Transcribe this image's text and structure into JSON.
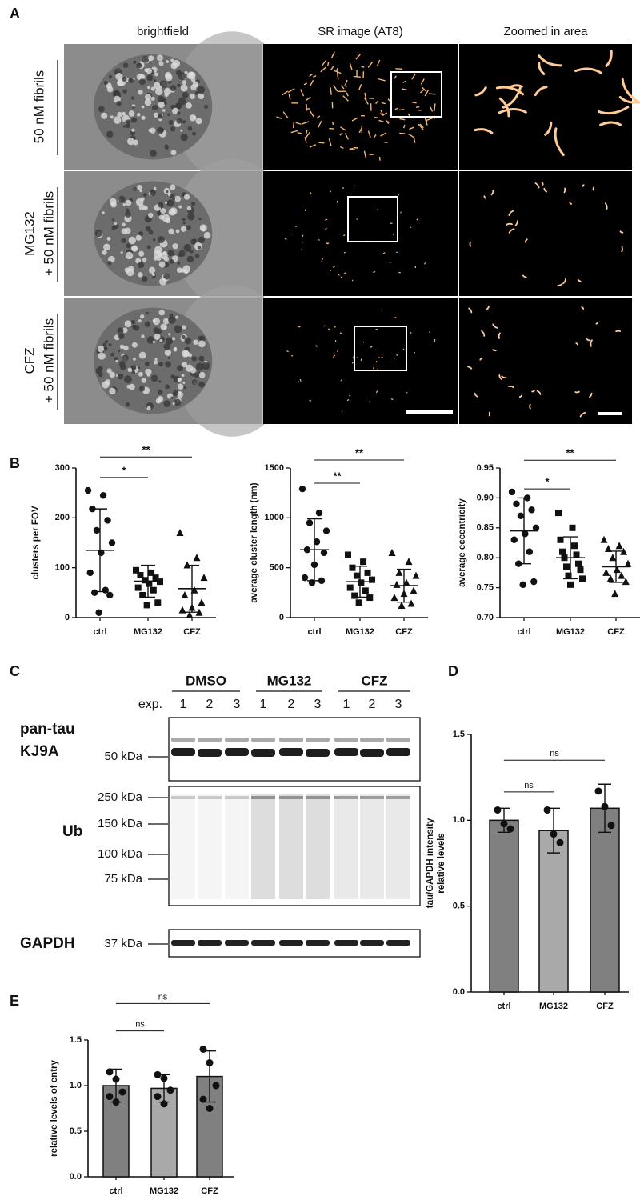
{
  "panel_labels": [
    "A",
    "B",
    "C",
    "D",
    "E"
  ],
  "panel_A": {
    "columns": [
      "brightfield",
      "SR image (AT8)",
      "Zoomed in area"
    ],
    "rows": [
      [
        "50 nM fibrils"
      ],
      [
        "MG132",
        "+ 50 nM fibrils"
      ],
      [
        "CFZ",
        "+ 50 nM fibrils"
      ]
    ]
  },
  "panel_C": {
    "groups": [
      "DMSO",
      "MG132",
      "CFZ"
    ],
    "lane_label": "exp.",
    "lanes": [
      "1",
      "2",
      "3",
      "1",
      "2",
      "3",
      "1",
      "2",
      "3"
    ],
    "blots": [
      {
        "labels": [
          "pan-tau",
          "KJ9A"
        ],
        "markers": [
          "50 kDa"
        ]
      },
      {
        "labels": [
          "Ub"
        ],
        "markers": [
          "250 kDa",
          "150 kDa",
          "100 kDa",
          "75 kDa"
        ]
      },
      {
        "labels": [
          "GAPDH"
        ],
        "markers": [
          "37 kDa"
        ]
      }
    ]
  },
  "chart_data": [
    {
      "type": "dot",
      "ylabel": "clusters per FOV",
      "categories": [
        "ctrl",
        "MG132",
        "CFZ"
      ],
      "markers": [
        "circle",
        "square",
        "triangle"
      ],
      "points": [
        [
          255,
          245,
          218,
          195,
          175,
          150,
          130,
          90,
          55,
          50,
          45,
          10
        ],
        [
          95,
          90,
          85,
          80,
          75,
          72,
          68,
          60,
          55,
          45,
          30,
          25
        ],
        [
          170,
          120,
          105,
          80,
          55,
          45,
          30,
          20,
          15,
          10,
          5
        ]
      ],
      "values": [
        135,
        73,
        58
      ],
      "errors": [
        83,
        32,
        47
      ],
      "ylim": [
        0,
        300
      ],
      "yticks": [
        0,
        100,
        200,
        300
      ],
      "annotations": [
        {
          "text": "*",
          "between": [
            "ctrl",
            "MG132"
          ],
          "y": 281
        },
        {
          "text": "**",
          "between": [
            "ctrl",
            "CFZ"
          ],
          "y": 322
        }
      ]
    },
    {
      "type": "dot",
      "ylabel": "average cluster length (nm)",
      "categories": [
        "ctrl",
        "MG132",
        "CFZ"
      ],
      "markers": [
        "circle",
        "square",
        "triangle"
      ],
      "points": [
        [
          1290,
          1050,
          950,
          870,
          760,
          680,
          650,
          530,
          400,
          370,
          350
        ],
        [
          630,
          560,
          500,
          450,
          420,
          380,
          350,
          300,
          270,
          220,
          200,
          150
        ],
        [
          650,
          560,
          450,
          420,
          350,
          330,
          270,
          240,
          200,
          140,
          120
        ]
      ],
      "values": [
        680,
        360,
        320
      ],
      "errors": [
        310,
        155,
        165
      ],
      "ylim": [
        0,
        1500
      ],
      "yticks": [
        0,
        500,
        1000,
        1500
      ],
      "annotations": [
        {
          "text": "**",
          "between": [
            "ctrl",
            "MG132"
          ],
          "y": 1348
        },
        {
          "text": "**",
          "between": [
            "ctrl",
            "CFZ"
          ],
          "y": 1580
        }
      ]
    },
    {
      "type": "dot",
      "ylabel": "average eccentricity",
      "categories": [
        "ctrl",
        "MG132",
        "CFZ"
      ],
      "markers": [
        "circle",
        "square",
        "triangle"
      ],
      "points": [
        [
          0.91,
          0.9,
          0.89,
          0.88,
          0.87,
          0.85,
          0.84,
          0.83,
          0.81,
          0.79,
          0.76,
          0.755
        ],
        [
          0.875,
          0.85,
          0.83,
          0.82,
          0.81,
          0.805,
          0.8,
          0.79,
          0.785,
          0.78,
          0.77,
          0.765,
          0.755
        ],
        [
          0.83,
          0.82,
          0.815,
          0.81,
          0.8,
          0.79,
          0.78,
          0.775,
          0.77,
          0.765,
          0.76,
          0.74
        ]
      ],
      "values": [
        0.845,
        0.8,
        0.785
      ],
      "errors": [
        0.055,
        0.035,
        0.026
      ],
      "ylim": [
        0.7,
        0.95
      ],
      "yticks": [
        {
          "value": 0.7,
          "label": "0.70"
        },
        0.75,
        {
          "value": 0.8,
          "label": "0.80"
        },
        0.85,
        {
          "value": 0.9,
          "label": "0.90"
        },
        0.95
      ],
      "annotations": [
        {
          "text": "*",
          "between": [
            "ctrl",
            "MG132"
          ],
          "y": 0.915
        },
        {
          "text": "**",
          "between": [
            "ctrl",
            "CFZ"
          ],
          "y": 0.963
        }
      ]
    },
    {
      "type": "bar",
      "ylabel": [
        "tau/GAPDH intensity",
        "relative levels"
      ],
      "categories": [
        "ctrl",
        "MG132",
        "CFZ"
      ],
      "colors": [
        "#808080",
        "#a9a9a9",
        "#808080"
      ],
      "points": [
        [
          1.06,
          0.98,
          0.95
        ],
        [
          1.06,
          0.92,
          0.87
        ],
        [
          1.17,
          1.08,
          0.97
        ]
      ],
      "values": [
        1.0,
        0.94,
        1.07
      ],
      "errors": [
        0.07,
        0.13,
        0.14
      ],
      "ylim": [
        0,
        1.5
      ],
      "yticks": [
        {
          "value": 0,
          "label": "0.0"
        },
        0.5,
        {
          "value": 1,
          "label": "1.0"
        },
        1.5
      ],
      "annotations": [
        {
          "text": "ns",
          "between": [
            "ctrl",
            "MG132"
          ],
          "y": 1.165
        },
        {
          "text": "ns",
          "between": [
            "ctrl",
            "CFZ"
          ],
          "y": 1.35
        }
      ]
    },
    {
      "type": "bar",
      "ylabel": "relative levels of entry",
      "categories": [
        "ctrl",
        "MG132",
        "CFZ"
      ],
      "colors": [
        "#808080",
        "#a9a9a9",
        "#808080"
      ],
      "points": [
        [
          1.15,
          1.07,
          0.93,
          0.88,
          0.82
        ],
        [
          1.12,
          1.08,
          0.95,
          0.88,
          0.8
        ],
        [
          1.4,
          1.25,
          1.0,
          0.85,
          0.75
        ]
      ],
      "values": [
        1.0,
        0.97,
        1.1
      ],
      "errors": [
        0.18,
        0.15,
        0.28
      ],
      "ylim": [
        0,
        1.5
      ],
      "yticks": [
        {
          "value": 0,
          "label": "0.0"
        },
        0.5,
        {
          "value": 1,
          "label": "1.0"
        },
        1.5
      ],
      "annotations": [
        {
          "text": "ns",
          "between": [
            "ctrl",
            "MG132"
          ],
          "y": 1.6
        },
        {
          "text": "ns",
          "between": [
            "ctrl",
            "CFZ"
          ],
          "y": 1.9
        }
      ]
    }
  ]
}
